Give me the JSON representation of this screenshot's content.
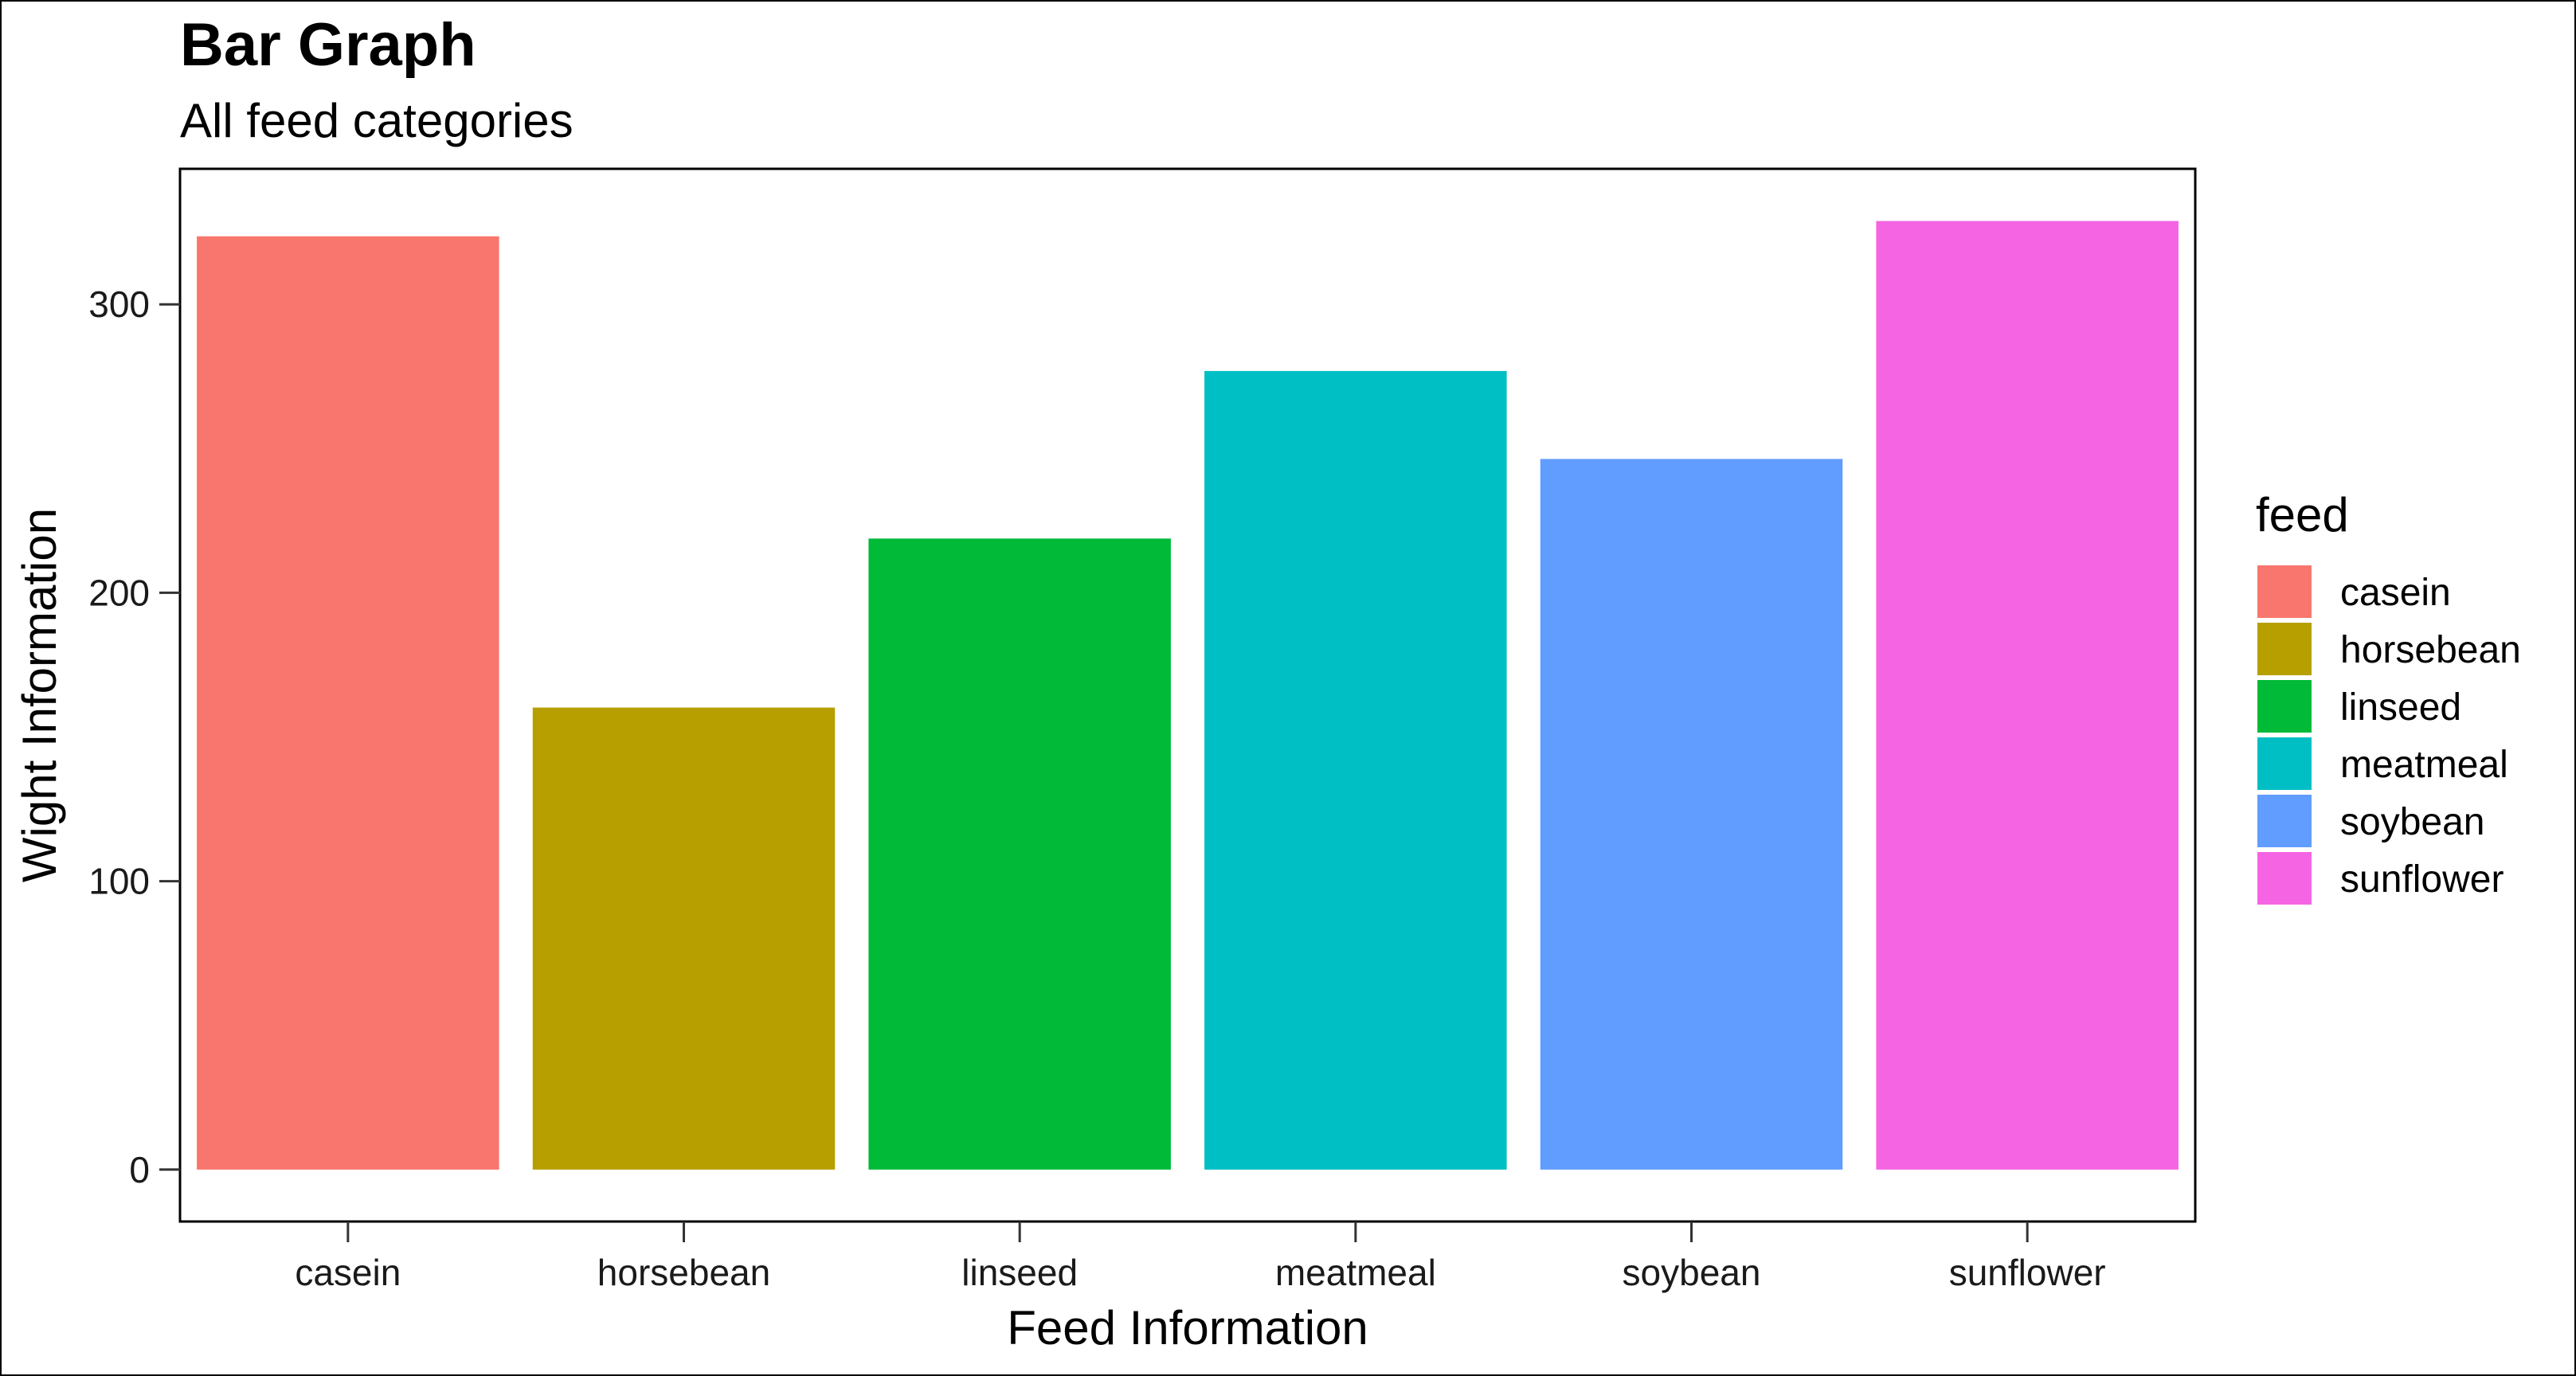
{
  "chart_data": {
    "type": "bar",
    "title": "Bar Graph",
    "subtitle": "All feed categories",
    "xlabel": "Feed Information",
    "ylabel": "Wight Information",
    "categories": [
      "casein",
      "horsebean",
      "linseed",
      "meatmeal",
      "soybean",
      "sunflower"
    ],
    "values": [
      323.6,
      160.2,
      218.8,
      276.9,
      246.4,
      328.9
    ],
    "colors": [
      "#F8766D",
      "#B79F00",
      "#00BA38",
      "#00BFC4",
      "#619CFF",
      "#F564E3"
    ],
    "ylim": [
      -18,
      347
    ],
    "yticks": [
      0,
      100,
      200,
      300
    ],
    "grid": false,
    "legend": {
      "title": "feed",
      "placement": "right",
      "entries": [
        "casein",
        "horsebean",
        "linseed",
        "meatmeal",
        "soybean",
        "sunflower"
      ]
    }
  }
}
